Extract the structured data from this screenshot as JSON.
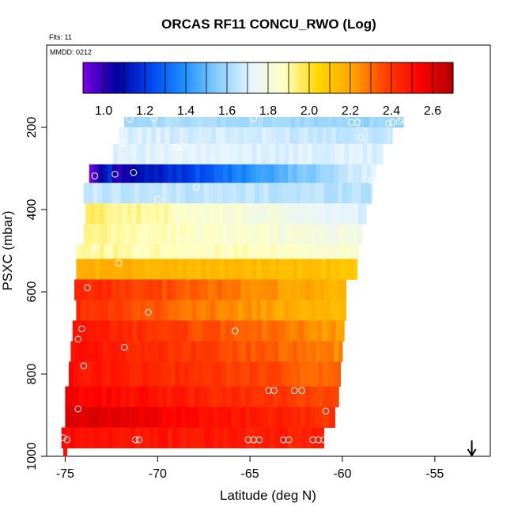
{
  "chart_data": {
    "type": "heatmap",
    "title": "ORCAS RF11 CONCU_RWO (Log)",
    "flights_label": "Flts: 11",
    "date_label": "MMDD: 0212",
    "xlabel": "Latitude (deg N)",
    "ylabel": "PSXC (mbar)",
    "xlim": [
      -76.0,
      -52.0
    ],
    "ylim": [
      1000,
      0
    ],
    "x_ticks": [
      -75,
      -70,
      -65,
      -60,
      -55
    ],
    "y_ticks": [
      200,
      400,
      600,
      800,
      1000
    ],
    "colorbar": {
      "range": [
        0.9,
        2.7
      ],
      "ticks": [
        1.0,
        1.2,
        1.4,
        1.6,
        1.8,
        2.0,
        2.2,
        2.4,
        2.6
      ],
      "stops": [
        "#7a00e6",
        "#0000a0",
        "#0044ee",
        "#1e90ff",
        "#87cefa",
        "#e6f4ff",
        "#ffffc0",
        "#ffd700",
        "#ffa500",
        "#ff4000",
        "#ff0000",
        "#b00000"
      ]
    },
    "bands": [
      {
        "p_top": 175,
        "p_bot": 200,
        "x_start": -71.8,
        "x_end": -56.7,
        "v_start": 1.62,
        "v_end": 1.58
      },
      {
        "p_top": 200,
        "p_bot": 240,
        "x_start": -72.1,
        "x_end": -57.3,
        "v_start": 1.7,
        "v_end": 1.66
      },
      {
        "p_top": 240,
        "p_bot": 290,
        "x_start": -72.4,
        "x_end": -57.8,
        "v_start": 1.72,
        "v_end": 1.7
      },
      {
        "p_top": 290,
        "p_bot": 335,
        "x_start": -73.7,
        "x_end": -58.2,
        "v_start": 0.95,
        "v_end": 1.74
      },
      {
        "p_top": 335,
        "p_bot": 385,
        "x_start": -74.0,
        "x_end": -58.4,
        "v_start": 1.66,
        "v_end": 1.64
      },
      {
        "p_top": 385,
        "p_bot": 435,
        "x_start": -73.9,
        "x_end": -58.7,
        "v_start": 1.96,
        "v_end": 1.7
      },
      {
        "p_top": 435,
        "p_bot": 485,
        "x_start": -74.0,
        "x_end": -58.9,
        "v_start": 1.92,
        "v_end": 1.78
      },
      {
        "p_top": 485,
        "p_bot": 520,
        "x_start": -74.4,
        "x_end": -59.1,
        "v_start": 1.92,
        "v_end": 1.84
      },
      {
        "p_top": 520,
        "p_bot": 570,
        "x_start": -74.4,
        "x_end": -59.2,
        "v_start": 2.18,
        "v_end": 2.1
      },
      {
        "p_top": 570,
        "p_bot": 620,
        "x_start": -74.5,
        "x_end": -59.8,
        "v_start": 2.45,
        "v_end": 2.15
      },
      {
        "p_top": 620,
        "p_bot": 670,
        "x_start": -74.4,
        "x_end": -59.8,
        "v_start": 2.42,
        "v_end": 2.12
      },
      {
        "p_top": 670,
        "p_bot": 720,
        "x_start": -74.6,
        "x_end": -59.9,
        "v_start": 2.48,
        "v_end": 2.22
      },
      {
        "p_top": 720,
        "p_bot": 770,
        "x_start": -74.7,
        "x_end": -60.0,
        "v_start": 2.5,
        "v_end": 2.25
      },
      {
        "p_top": 770,
        "p_bot": 830,
        "x_start": -74.8,
        "x_end": -60.1,
        "v_start": 2.5,
        "v_end": 2.3
      },
      {
        "p_top": 830,
        "p_bot": 880,
        "x_start": -75.0,
        "x_end": -60.2,
        "v_start": 2.55,
        "v_end": 2.35
      },
      {
        "p_top": 880,
        "p_bot": 930,
        "x_start": -75.0,
        "x_end": -60.4,
        "v_start": 2.62,
        "v_end": 2.4
      },
      {
        "p_top": 930,
        "p_bot": 980,
        "x_start": -75.2,
        "x_end": -61.0,
        "v_start": 2.5,
        "v_end": 2.45
      },
      {
        "p_top": 980,
        "p_bot": 1000,
        "x_start": -75.1,
        "x_end": -74.9,
        "v_start": 2.5,
        "v_end": 2.5
      }
    ],
    "points": [
      [
        -71.5,
        180
      ],
      [
        -70.2,
        178
      ],
      [
        -64.8,
        178
      ],
      [
        -59.5,
        188
      ],
      [
        -59.2,
        188
      ],
      [
        -57.5,
        190
      ],
      [
        -57.3,
        188
      ],
      [
        -56.9,
        186
      ],
      [
        -56.8,
        180
      ],
      [
        -71.9,
        238
      ],
      [
        -69.0,
        248
      ],
      [
        -68.6,
        248
      ],
      [
        -59.0,
        225
      ],
      [
        -57.6,
        248
      ],
      [
        -71.3,
        310
      ],
      [
        -73.4,
        318
      ],
      [
        -72.3,
        314
      ],
      [
        -67.9,
        345
      ],
      [
        -58.4,
        330
      ],
      [
        -58.0,
        318
      ],
      [
        -70.0,
        375
      ],
      [
        -68.5,
        470
      ],
      [
        -73.3,
        490
      ],
      [
        -72.1,
        530
      ],
      [
        -73.8,
        590
      ],
      [
        -70.5,
        650
      ],
      [
        -74.1,
        690
      ],
      [
        -65.8,
        695
      ],
      [
        -74.3,
        715
      ],
      [
        -71.8,
        735
      ],
      [
        -74.0,
        780
      ],
      [
        -64.0,
        840
      ],
      [
        -63.7,
        840
      ],
      [
        -62.6,
        840
      ],
      [
        -62.2,
        840
      ],
      [
        -74.3,
        885
      ],
      [
        -60.9,
        890
      ],
      [
        -75.1,
        955
      ],
      [
        -74.9,
        960
      ],
      [
        -71.2,
        960
      ],
      [
        -71.0,
        960
      ],
      [
        -65.1,
        960
      ],
      [
        -64.8,
        960
      ],
      [
        -64.5,
        960
      ],
      [
        -63.2,
        960
      ],
      [
        -62.9,
        960
      ],
      [
        -61.6,
        960
      ],
      [
        -61.3,
        960
      ],
      [
        -61.0,
        960
      ]
    ],
    "arrow_x": -53.0
  }
}
